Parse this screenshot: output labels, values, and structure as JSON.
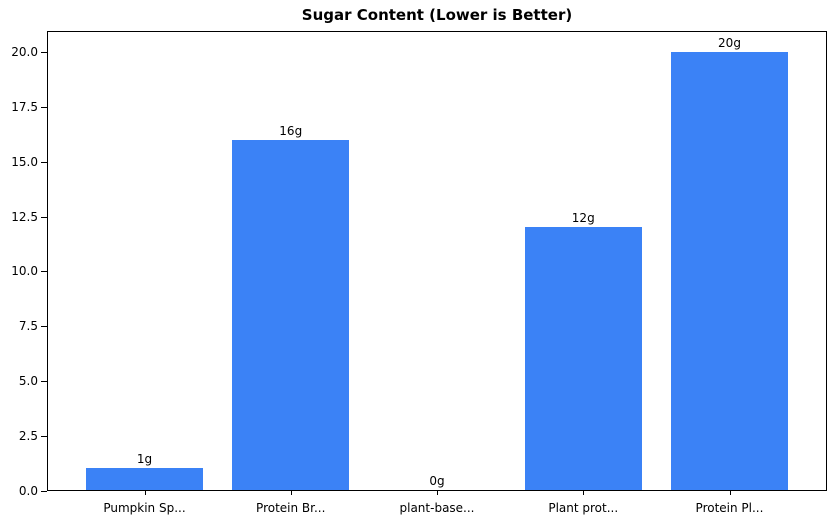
{
  "chart_data": {
    "type": "bar",
    "title": "Sugar Content (Lower is Better)",
    "categories": [
      "Pumpkin Sp...",
      "Protein Br...",
      "plant-base...",
      "Plant prot...",
      "Protein Pl..."
    ],
    "values": [
      1,
      16,
      0,
      12,
      20
    ],
    "bar_labels": [
      "1g",
      "16g",
      "0g",
      "12g",
      "20g"
    ],
    "xlabel": "",
    "ylabel": "",
    "yticks": [
      0.0,
      2.5,
      5.0,
      7.5,
      10.0,
      12.5,
      15.0,
      17.5,
      20.0
    ],
    "ytick_labels": [
      "0.0",
      "2.5",
      "5.0",
      "7.5",
      "10.0",
      "12.5",
      "15.0",
      "17.5",
      "20.0"
    ],
    "ylim": [
      0,
      21
    ],
    "grid": false,
    "legend_position": "none",
    "bar_color": "#3b82f6",
    "axis_color": "#000000",
    "text_color": "#000000",
    "background_color": "#ffffff"
  }
}
